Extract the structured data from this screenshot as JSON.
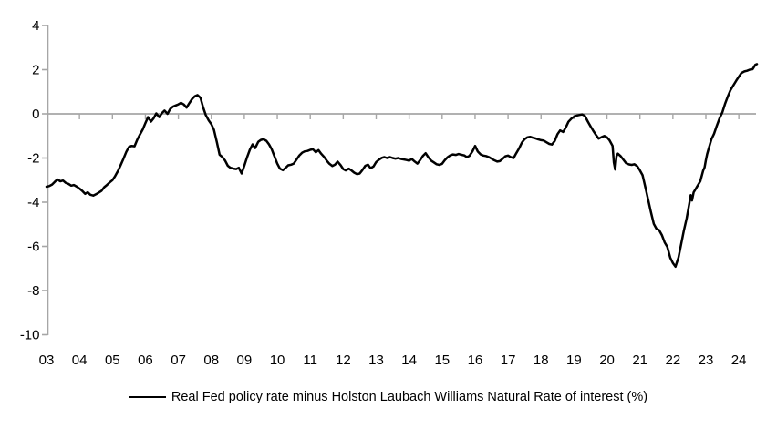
{
  "chart_data": {
    "type": "line",
    "title": "",
    "xlabel": "",
    "ylabel": "",
    "legend_position": "bottom",
    "grid": false,
    "zero_line": true,
    "axis_color": "#a6a6a6",
    "tick_label_color": "#000000",
    "x_axis": {
      "start_year": 2003,
      "labels": [
        "03",
        "04",
        "05",
        "06",
        "07",
        "08",
        "09",
        "10",
        "11",
        "12",
        "13",
        "14",
        "15",
        "16",
        "17",
        "18",
        "19",
        "20",
        "21",
        "22",
        "23",
        "24"
      ]
    },
    "y_axis": {
      "min": -10,
      "max": 4,
      "ticks": [
        4,
        2,
        0,
        -2,
        -4,
        -6,
        -8,
        -10
      ],
      "tick_labels": [
        "4",
        "2",
        "0",
        "-2",
        "-4",
        "-6",
        "-8",
        "-10"
      ]
    },
    "series": [
      {
        "name": "Real Fed policy rate minus Holston Laubach Williams Natural Rate of interest (%)",
        "color": "#000000",
        "points": [
          [
            2003.0,
            -3.3
          ],
          [
            2003.08,
            -3.27
          ],
          [
            2003.17,
            -3.2
          ],
          [
            2003.25,
            -3.08
          ],
          [
            2003.33,
            -2.97
          ],
          [
            2003.42,
            -3.05
          ],
          [
            2003.5,
            -3.02
          ],
          [
            2003.58,
            -3.12
          ],
          [
            2003.67,
            -3.17
          ],
          [
            2003.75,
            -3.25
          ],
          [
            2003.83,
            -3.22
          ],
          [
            2003.92,
            -3.3
          ],
          [
            2004.0,
            -3.38
          ],
          [
            2004.08,
            -3.48
          ],
          [
            2004.17,
            -3.62
          ],
          [
            2004.25,
            -3.55
          ],
          [
            2004.33,
            -3.66
          ],
          [
            2004.42,
            -3.7
          ],
          [
            2004.5,
            -3.64
          ],
          [
            2004.58,
            -3.57
          ],
          [
            2004.67,
            -3.48
          ],
          [
            2004.75,
            -3.32
          ],
          [
            2004.83,
            -3.22
          ],
          [
            2004.92,
            -3.1
          ],
          [
            2005.0,
            -3.0
          ],
          [
            2005.08,
            -2.82
          ],
          [
            2005.17,
            -2.58
          ],
          [
            2005.25,
            -2.32
          ],
          [
            2005.33,
            -2.05
          ],
          [
            2005.42,
            -1.72
          ],
          [
            2005.5,
            -1.5
          ],
          [
            2005.58,
            -1.45
          ],
          [
            2005.67,
            -1.47
          ],
          [
            2005.75,
            -1.18
          ],
          [
            2005.83,
            -0.95
          ],
          [
            2005.92,
            -0.7
          ],
          [
            2006.0,
            -0.42
          ],
          [
            2006.08,
            -0.15
          ],
          [
            2006.17,
            -0.35
          ],
          [
            2006.25,
            -0.2
          ],
          [
            2006.33,
            0.02
          ],
          [
            2006.42,
            -0.15
          ],
          [
            2006.5,
            0.03
          ],
          [
            2006.58,
            0.15
          ],
          [
            2006.67,
            0.0
          ],
          [
            2006.75,
            0.22
          ],
          [
            2006.83,
            0.32
          ],
          [
            2006.92,
            0.38
          ],
          [
            2007.0,
            0.43
          ],
          [
            2007.08,
            0.5
          ],
          [
            2007.17,
            0.42
          ],
          [
            2007.25,
            0.28
          ],
          [
            2007.33,
            0.48
          ],
          [
            2007.42,
            0.68
          ],
          [
            2007.5,
            0.8
          ],
          [
            2007.58,
            0.85
          ],
          [
            2007.67,
            0.73
          ],
          [
            2007.75,
            0.3
          ],
          [
            2007.83,
            -0.05
          ],
          [
            2007.92,
            -0.3
          ],
          [
            2008.0,
            -0.47
          ],
          [
            2008.08,
            -0.72
          ],
          [
            2008.17,
            -1.3
          ],
          [
            2008.25,
            -1.85
          ],
          [
            2008.33,
            -1.95
          ],
          [
            2008.42,
            -2.12
          ],
          [
            2008.5,
            -2.35
          ],
          [
            2008.58,
            -2.44
          ],
          [
            2008.67,
            -2.48
          ],
          [
            2008.75,
            -2.5
          ],
          [
            2008.83,
            -2.44
          ],
          [
            2008.92,
            -2.7
          ],
          [
            2009.0,
            -2.35
          ],
          [
            2009.08,
            -1.98
          ],
          [
            2009.17,
            -1.62
          ],
          [
            2009.25,
            -1.38
          ],
          [
            2009.33,
            -1.55
          ],
          [
            2009.42,
            -1.27
          ],
          [
            2009.5,
            -1.18
          ],
          [
            2009.58,
            -1.15
          ],
          [
            2009.67,
            -1.22
          ],
          [
            2009.75,
            -1.38
          ],
          [
            2009.83,
            -1.6
          ],
          [
            2009.92,
            -1.95
          ],
          [
            2010.0,
            -2.25
          ],
          [
            2010.08,
            -2.48
          ],
          [
            2010.17,
            -2.55
          ],
          [
            2010.25,
            -2.45
          ],
          [
            2010.33,
            -2.33
          ],
          [
            2010.42,
            -2.3
          ],
          [
            2010.5,
            -2.25
          ],
          [
            2010.58,
            -2.08
          ],
          [
            2010.67,
            -1.88
          ],
          [
            2010.75,
            -1.76
          ],
          [
            2010.83,
            -1.7
          ],
          [
            2010.92,
            -1.68
          ],
          [
            2011.0,
            -1.63
          ],
          [
            2011.08,
            -1.6
          ],
          [
            2011.17,
            -1.74
          ],
          [
            2011.25,
            -1.64
          ],
          [
            2011.33,
            -1.8
          ],
          [
            2011.42,
            -1.95
          ],
          [
            2011.5,
            -2.12
          ],
          [
            2011.58,
            -2.26
          ],
          [
            2011.67,
            -2.36
          ],
          [
            2011.75,
            -2.3
          ],
          [
            2011.83,
            -2.16
          ],
          [
            2011.92,
            -2.32
          ],
          [
            2012.0,
            -2.5
          ],
          [
            2012.08,
            -2.56
          ],
          [
            2012.17,
            -2.48
          ],
          [
            2012.25,
            -2.56
          ],
          [
            2012.33,
            -2.66
          ],
          [
            2012.42,
            -2.73
          ],
          [
            2012.5,
            -2.7
          ],
          [
            2012.58,
            -2.55
          ],
          [
            2012.67,
            -2.35
          ],
          [
            2012.75,
            -2.3
          ],
          [
            2012.83,
            -2.46
          ],
          [
            2012.92,
            -2.38
          ],
          [
            2013.0,
            -2.18
          ],
          [
            2013.08,
            -2.08
          ],
          [
            2013.17,
            -1.99
          ],
          [
            2013.25,
            -1.96
          ],
          [
            2013.33,
            -2.0
          ],
          [
            2013.42,
            -1.96
          ],
          [
            2013.5,
            -2.0
          ],
          [
            2013.58,
            -2.03
          ],
          [
            2013.67,
            -2.0
          ],
          [
            2013.75,
            -2.04
          ],
          [
            2013.83,
            -2.06
          ],
          [
            2013.92,
            -2.09
          ],
          [
            2014.0,
            -2.12
          ],
          [
            2014.08,
            -2.04
          ],
          [
            2014.17,
            -2.16
          ],
          [
            2014.25,
            -2.25
          ],
          [
            2014.33,
            -2.1
          ],
          [
            2014.42,
            -1.9
          ],
          [
            2014.5,
            -1.78
          ],
          [
            2014.58,
            -1.96
          ],
          [
            2014.67,
            -2.12
          ],
          [
            2014.75,
            -2.2
          ],
          [
            2014.83,
            -2.28
          ],
          [
            2014.92,
            -2.31
          ],
          [
            2015.0,
            -2.26
          ],
          [
            2015.08,
            -2.1
          ],
          [
            2015.17,
            -1.96
          ],
          [
            2015.25,
            -1.88
          ],
          [
            2015.33,
            -1.84
          ],
          [
            2015.42,
            -1.86
          ],
          [
            2015.5,
            -1.82
          ],
          [
            2015.58,
            -1.85
          ],
          [
            2015.67,
            -1.88
          ],
          [
            2015.75,
            -1.96
          ],
          [
            2015.83,
            -1.9
          ],
          [
            2015.92,
            -1.7
          ],
          [
            2016.0,
            -1.45
          ],
          [
            2016.08,
            -1.7
          ],
          [
            2016.17,
            -1.84
          ],
          [
            2016.25,
            -1.89
          ],
          [
            2016.33,
            -1.91
          ],
          [
            2016.42,
            -1.96
          ],
          [
            2016.5,
            -2.03
          ],
          [
            2016.58,
            -2.1
          ],
          [
            2016.67,
            -2.16
          ],
          [
            2016.75,
            -2.14
          ],
          [
            2016.83,
            -2.04
          ],
          [
            2016.92,
            -1.92
          ],
          [
            2017.0,
            -1.89
          ],
          [
            2017.08,
            -1.96
          ],
          [
            2017.17,
            -2.0
          ],
          [
            2017.25,
            -1.78
          ],
          [
            2017.33,
            -1.58
          ],
          [
            2017.42,
            -1.3
          ],
          [
            2017.5,
            -1.15
          ],
          [
            2017.58,
            -1.07
          ],
          [
            2017.67,
            -1.04
          ],
          [
            2017.75,
            -1.08
          ],
          [
            2017.83,
            -1.11
          ],
          [
            2017.92,
            -1.16
          ],
          [
            2018.0,
            -1.19
          ],
          [
            2018.08,
            -1.21
          ],
          [
            2018.17,
            -1.29
          ],
          [
            2018.25,
            -1.36
          ],
          [
            2018.33,
            -1.39
          ],
          [
            2018.42,
            -1.22
          ],
          [
            2018.5,
            -0.92
          ],
          [
            2018.58,
            -0.75
          ],
          [
            2018.67,
            -0.82
          ],
          [
            2018.75,
            -0.62
          ],
          [
            2018.83,
            -0.36
          ],
          [
            2018.92,
            -0.22
          ],
          [
            2019.0,
            -0.13
          ],
          [
            2019.08,
            -0.08
          ],
          [
            2019.17,
            -0.05
          ],
          [
            2019.25,
            -0.03
          ],
          [
            2019.33,
            -0.09
          ],
          [
            2019.42,
            -0.35
          ],
          [
            2019.5,
            -0.56
          ],
          [
            2019.58,
            -0.76
          ],
          [
            2019.67,
            -0.96
          ],
          [
            2019.75,
            -1.12
          ],
          [
            2019.83,
            -1.06
          ],
          [
            2019.92,
            -1.0
          ],
          [
            2020.0,
            -1.06
          ],
          [
            2020.08,
            -1.2
          ],
          [
            2020.17,
            -1.45
          ],
          [
            2020.21,
            -2.2
          ],
          [
            2020.25,
            -2.52
          ],
          [
            2020.29,
            -1.92
          ],
          [
            2020.33,
            -1.8
          ],
          [
            2020.42,
            -1.92
          ],
          [
            2020.5,
            -2.08
          ],
          [
            2020.58,
            -2.23
          ],
          [
            2020.67,
            -2.29
          ],
          [
            2020.75,
            -2.31
          ],
          [
            2020.83,
            -2.28
          ],
          [
            2020.92,
            -2.37
          ],
          [
            2021.0,
            -2.56
          ],
          [
            2021.08,
            -2.78
          ],
          [
            2021.17,
            -3.35
          ],
          [
            2021.25,
            -3.88
          ],
          [
            2021.33,
            -4.42
          ],
          [
            2021.42,
            -4.98
          ],
          [
            2021.5,
            -5.2
          ],
          [
            2021.58,
            -5.26
          ],
          [
            2021.67,
            -5.5
          ],
          [
            2021.75,
            -5.82
          ],
          [
            2021.83,
            -6.02
          ],
          [
            2021.92,
            -6.52
          ],
          [
            2022.0,
            -6.76
          ],
          [
            2022.08,
            -6.92
          ],
          [
            2022.17,
            -6.5
          ],
          [
            2022.25,
            -5.9
          ],
          [
            2022.33,
            -5.3
          ],
          [
            2022.42,
            -4.72
          ],
          [
            2022.5,
            -4.05
          ],
          [
            2022.54,
            -3.68
          ],
          [
            2022.58,
            -3.92
          ],
          [
            2022.63,
            -3.55
          ],
          [
            2022.67,
            -3.45
          ],
          [
            2022.75,
            -3.25
          ],
          [
            2022.83,
            -3.05
          ],
          [
            2022.92,
            -2.56
          ],
          [
            2022.96,
            -2.42
          ],
          [
            2023.0,
            -2.1
          ],
          [
            2023.04,
            -1.82
          ],
          [
            2023.08,
            -1.6
          ],
          [
            2023.17,
            -1.15
          ],
          [
            2023.25,
            -0.9
          ],
          [
            2023.33,
            -0.55
          ],
          [
            2023.42,
            -0.18
          ],
          [
            2023.5,
            0.07
          ],
          [
            2023.58,
            0.45
          ],
          [
            2023.67,
            0.8
          ],
          [
            2023.75,
            1.08
          ],
          [
            2023.83,
            1.28
          ],
          [
            2023.92,
            1.5
          ],
          [
            2024.0,
            1.68
          ],
          [
            2024.08,
            1.85
          ],
          [
            2024.17,
            1.92
          ],
          [
            2024.25,
            1.95
          ],
          [
            2024.33,
            2.0
          ],
          [
            2024.42,
            2.02
          ],
          [
            2024.5,
            2.22
          ],
          [
            2024.55,
            2.25
          ]
        ]
      }
    ]
  },
  "legend": {
    "label": "Real Fed policy rate minus Holston Laubach Williams Natural Rate of interest (%)"
  }
}
